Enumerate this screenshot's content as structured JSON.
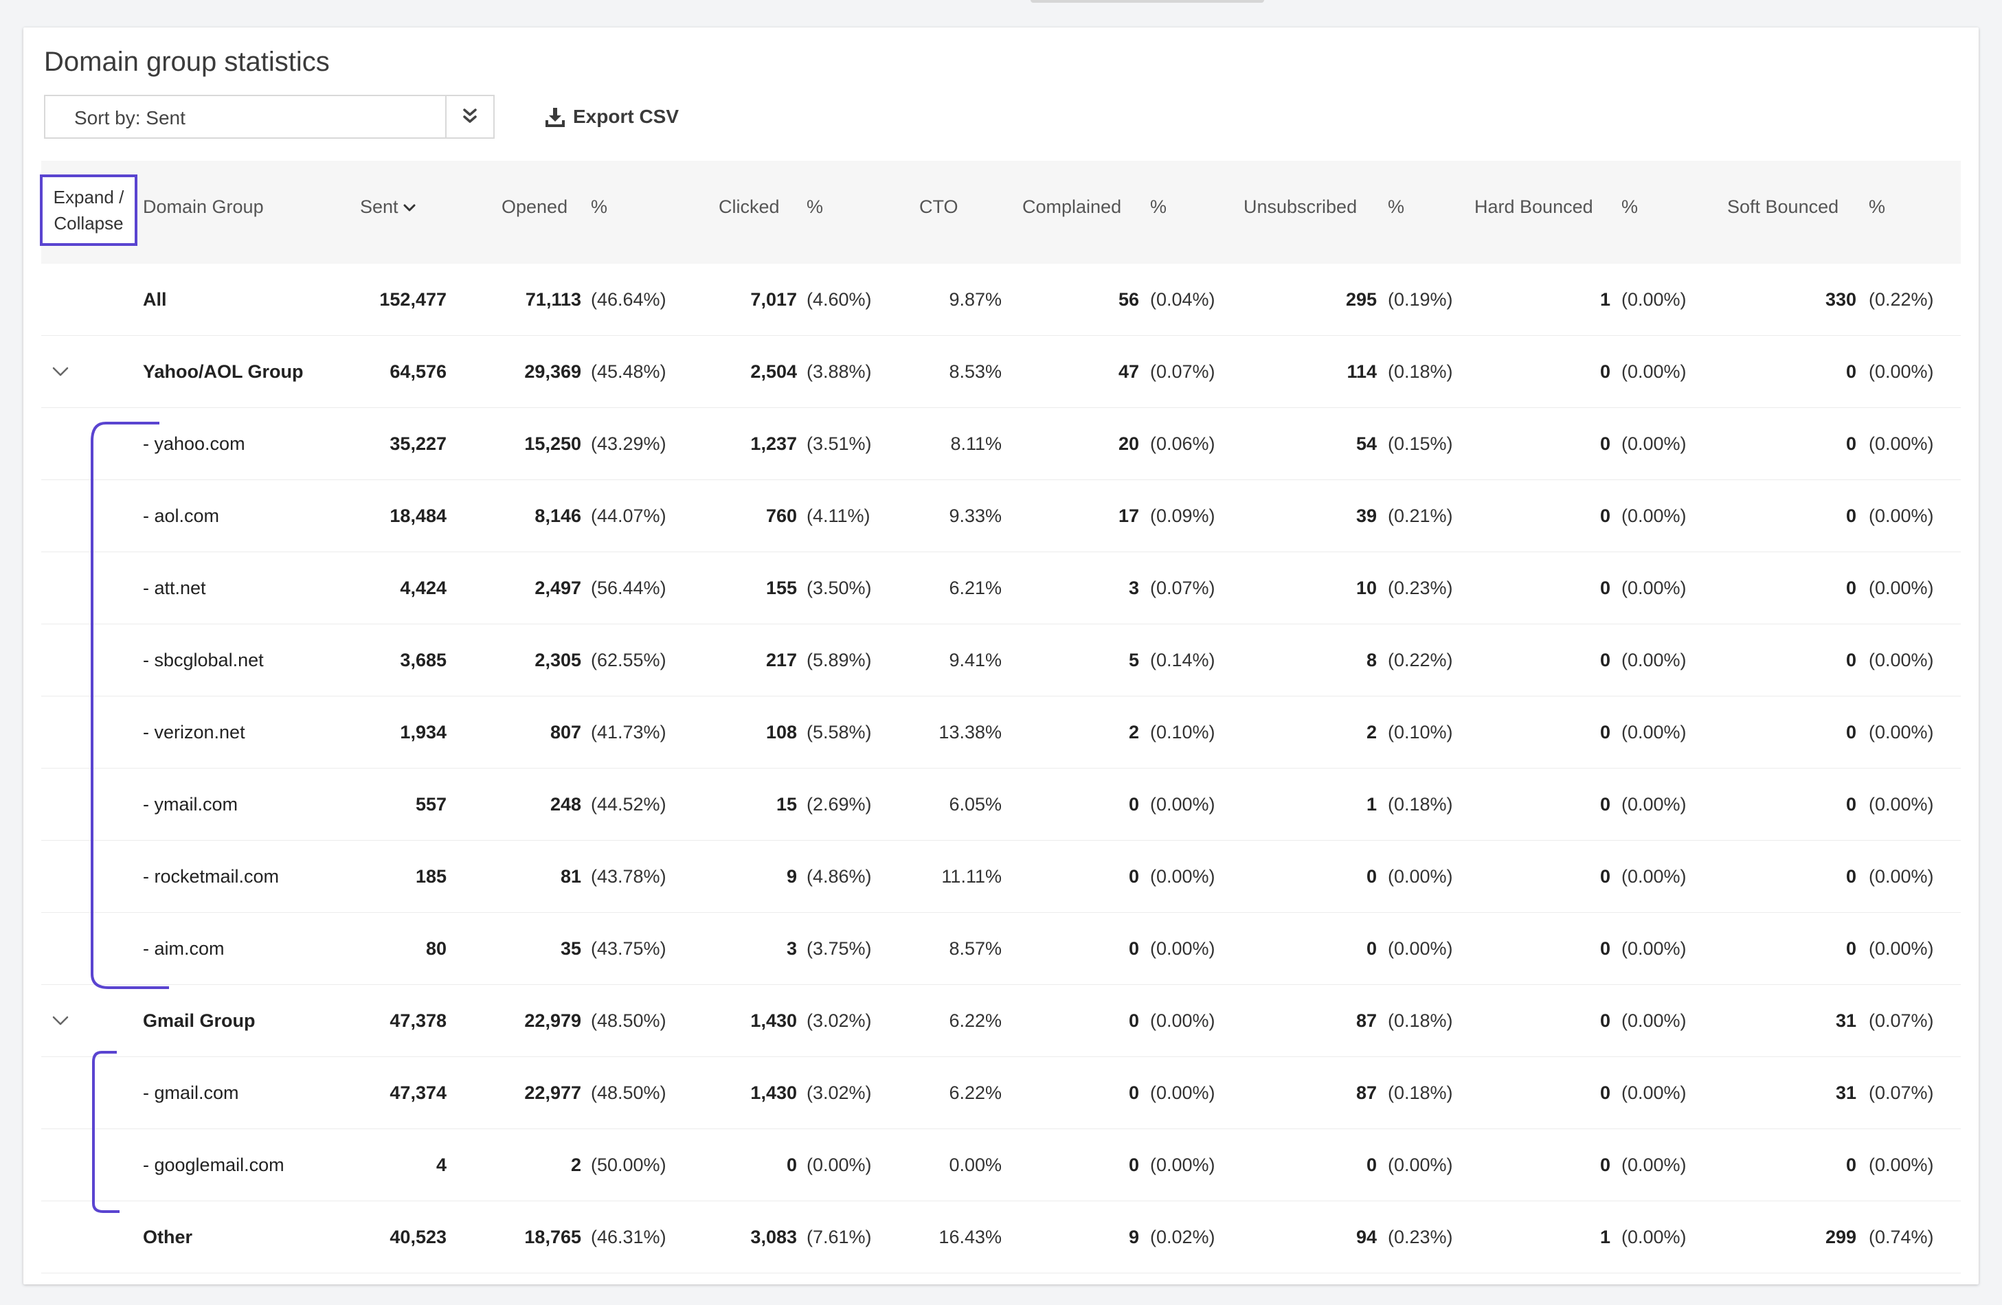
{
  "page_title": "Domain group statistics",
  "toolbar": {
    "sort_label": "Sort by: Sent",
    "export_label": "Export CSV"
  },
  "annotation": {
    "expand_collapse": "Expand / Collapse"
  },
  "columns": {
    "domain_group": "Domain Group",
    "sent": "Sent",
    "opened": "Opened",
    "opened_pct": "%",
    "clicked": "Clicked",
    "clicked_pct": "%",
    "cto": "CTO",
    "complained": "Complained",
    "complained_pct": "%",
    "unsubscribed": "Unsubscribed",
    "unsubscribed_pct": "%",
    "hard_bounced": "Hard Bounced",
    "hard_bounced_pct": "%",
    "soft_bounced": "Soft Bounced",
    "soft_bounced_pct": "%"
  },
  "rows": [
    {
      "name": "All",
      "group": false,
      "sub": false,
      "sent": "152,477",
      "opened": "71,113",
      "opened_pct": "(46.64%)",
      "clicked": "7,017",
      "clicked_pct": "(4.60%)",
      "cto": "9.87%",
      "complained": "56",
      "complained_pct": "(0.04%)",
      "unsubscribed": "295",
      "unsubscribed_pct": "(0.19%)",
      "hard": "1",
      "hard_pct": "(0.00%)",
      "soft": "330",
      "soft_pct": "(0.22%)"
    },
    {
      "name": "Yahoo/AOL Group",
      "group": true,
      "sub": false,
      "sent": "64,576",
      "opened": "29,369",
      "opened_pct": "(45.48%)",
      "clicked": "2,504",
      "clicked_pct": "(3.88%)",
      "cto": "8.53%",
      "complained": "47",
      "complained_pct": "(0.07%)",
      "unsubscribed": "114",
      "unsubscribed_pct": "(0.18%)",
      "hard": "0",
      "hard_pct": "(0.00%)",
      "soft": "0",
      "soft_pct": "(0.00%)"
    },
    {
      "name": "- yahoo.com",
      "group": false,
      "sub": true,
      "sent": "35,227",
      "opened": "15,250",
      "opened_pct": "(43.29%)",
      "clicked": "1,237",
      "clicked_pct": "(3.51%)",
      "cto": "8.11%",
      "complained": "20",
      "complained_pct": "(0.06%)",
      "unsubscribed": "54",
      "unsubscribed_pct": "(0.15%)",
      "hard": "0",
      "hard_pct": "(0.00%)",
      "soft": "0",
      "soft_pct": "(0.00%)"
    },
    {
      "name": "- aol.com",
      "group": false,
      "sub": true,
      "sent": "18,484",
      "opened": "8,146",
      "opened_pct": "(44.07%)",
      "clicked": "760",
      "clicked_pct": "(4.11%)",
      "cto": "9.33%",
      "complained": "17",
      "complained_pct": "(0.09%)",
      "unsubscribed": "39",
      "unsubscribed_pct": "(0.21%)",
      "hard": "0",
      "hard_pct": "(0.00%)",
      "soft": "0",
      "soft_pct": "(0.00%)"
    },
    {
      "name": "- att.net",
      "group": false,
      "sub": true,
      "sent": "4,424",
      "opened": "2,497",
      "opened_pct": "(56.44%)",
      "clicked": "155",
      "clicked_pct": "(3.50%)",
      "cto": "6.21%",
      "complained": "3",
      "complained_pct": "(0.07%)",
      "unsubscribed": "10",
      "unsubscribed_pct": "(0.23%)",
      "hard": "0",
      "hard_pct": "(0.00%)",
      "soft": "0",
      "soft_pct": "(0.00%)"
    },
    {
      "name": "- sbcglobal.net",
      "group": false,
      "sub": true,
      "sent": "3,685",
      "opened": "2,305",
      "opened_pct": "(62.55%)",
      "clicked": "217",
      "clicked_pct": "(5.89%)",
      "cto": "9.41%",
      "complained": "5",
      "complained_pct": "(0.14%)",
      "unsubscribed": "8",
      "unsubscribed_pct": "(0.22%)",
      "hard": "0",
      "hard_pct": "(0.00%)",
      "soft": "0",
      "soft_pct": "(0.00%)"
    },
    {
      "name": "- verizon.net",
      "group": false,
      "sub": true,
      "sent": "1,934",
      "opened": "807",
      "opened_pct": "(41.73%)",
      "clicked": "108",
      "clicked_pct": "(5.58%)",
      "cto": "13.38%",
      "complained": "2",
      "complained_pct": "(0.10%)",
      "unsubscribed": "2",
      "unsubscribed_pct": "(0.10%)",
      "hard": "0",
      "hard_pct": "(0.00%)",
      "soft": "0",
      "soft_pct": "(0.00%)"
    },
    {
      "name": "- ymail.com",
      "group": false,
      "sub": true,
      "sent": "557",
      "opened": "248",
      "opened_pct": "(44.52%)",
      "clicked": "15",
      "clicked_pct": "(2.69%)",
      "cto": "6.05%",
      "complained": "0",
      "complained_pct": "(0.00%)",
      "unsubscribed": "1",
      "unsubscribed_pct": "(0.18%)",
      "hard": "0",
      "hard_pct": "(0.00%)",
      "soft": "0",
      "soft_pct": "(0.00%)"
    },
    {
      "name": "- rocketmail.com",
      "group": false,
      "sub": true,
      "sent": "185",
      "opened": "81",
      "opened_pct": "(43.78%)",
      "clicked": "9",
      "clicked_pct": "(4.86%)",
      "cto": "11.11%",
      "complained": "0",
      "complained_pct": "(0.00%)",
      "unsubscribed": "0",
      "unsubscribed_pct": "(0.00%)",
      "hard": "0",
      "hard_pct": "(0.00%)",
      "soft": "0",
      "soft_pct": "(0.00%)"
    },
    {
      "name": "- aim.com",
      "group": false,
      "sub": true,
      "sent": "80",
      "opened": "35",
      "opened_pct": "(43.75%)",
      "clicked": "3",
      "clicked_pct": "(3.75%)",
      "cto": "8.57%",
      "complained": "0",
      "complained_pct": "(0.00%)",
      "unsubscribed": "0",
      "unsubscribed_pct": "(0.00%)",
      "hard": "0",
      "hard_pct": "(0.00%)",
      "soft": "0",
      "soft_pct": "(0.00%)"
    },
    {
      "name": "Gmail Group",
      "group": true,
      "sub": false,
      "sent": "47,378",
      "opened": "22,979",
      "opened_pct": "(48.50%)",
      "clicked": "1,430",
      "clicked_pct": "(3.02%)",
      "cto": "6.22%",
      "complained": "0",
      "complained_pct": "(0.00%)",
      "unsubscribed": "87",
      "unsubscribed_pct": "(0.18%)",
      "hard": "0",
      "hard_pct": "(0.00%)",
      "soft": "31",
      "soft_pct": "(0.07%)"
    },
    {
      "name": "- gmail.com",
      "group": false,
      "sub": true,
      "sent": "47,374",
      "opened": "22,977",
      "opened_pct": "(48.50%)",
      "clicked": "1,430",
      "clicked_pct": "(3.02%)",
      "cto": "6.22%",
      "complained": "0",
      "complained_pct": "(0.00%)",
      "unsubscribed": "87",
      "unsubscribed_pct": "(0.18%)",
      "hard": "0",
      "hard_pct": "(0.00%)",
      "soft": "31",
      "soft_pct": "(0.07%)"
    },
    {
      "name": "- googlemail.com",
      "group": false,
      "sub": true,
      "sent": "4",
      "opened": "2",
      "opened_pct": "(50.00%)",
      "clicked": "0",
      "clicked_pct": "(0.00%)",
      "cto": "0.00%",
      "complained": "0",
      "complained_pct": "(0.00%)",
      "unsubscribed": "0",
      "unsubscribed_pct": "(0.00%)",
      "hard": "0",
      "hard_pct": "(0.00%)",
      "soft": "0",
      "soft_pct": "(0.00%)"
    },
    {
      "name": "Other",
      "group": false,
      "sub": false,
      "sent": "40,523",
      "opened": "18,765",
      "opened_pct": "(46.31%)",
      "clicked": "3,083",
      "clicked_pct": "(7.61%)",
      "cto": "16.43%",
      "complained": "9",
      "complained_pct": "(0.02%)",
      "unsubscribed": "94",
      "unsubscribed_pct": "(0.23%)",
      "hard": "1",
      "hard_pct": "(0.00%)",
      "soft": "299",
      "soft_pct": "(0.74%)"
    }
  ],
  "colors": {
    "annotation": "#5a44d0",
    "header_bg": "#f6f6f6"
  },
  "icons": {
    "sort": "double-chevron-down-icon",
    "export": "download-icon",
    "group_toggle": "chevron-down-icon"
  }
}
